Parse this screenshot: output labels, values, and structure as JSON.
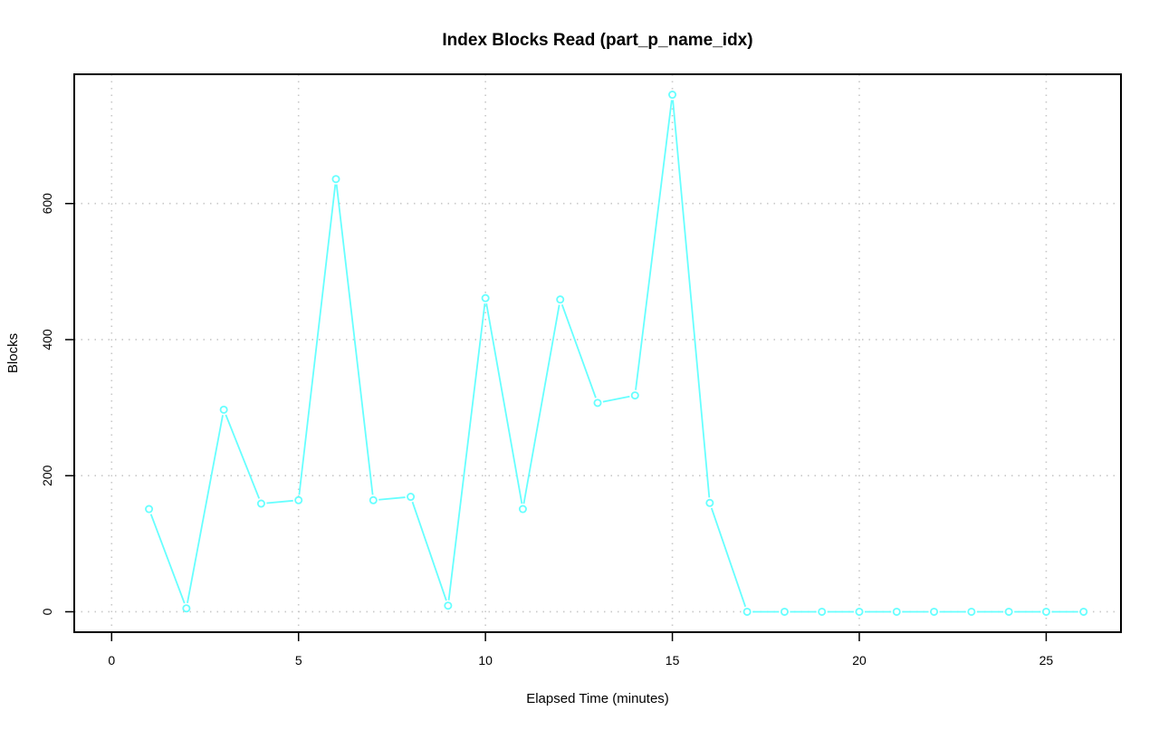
{
  "chart_data": {
    "type": "line",
    "title": "Index Blocks Read (part_p_name_idx)",
    "xlabel": "Elapsed Time (minutes)",
    "ylabel": "Blocks",
    "xlim": [
      -1,
      27
    ],
    "ylim": [
      -30,
      790
    ],
    "x_ticks": [
      0,
      5,
      10,
      15,
      20,
      25
    ],
    "x_tick_labels": [
      "0",
      "5",
      "10",
      "15",
      "20",
      "25"
    ],
    "y_ticks": [
      0,
      200,
      400,
      600
    ],
    "y_tick_labels": [
      "0",
      "200",
      "400",
      "600"
    ],
    "grid": true,
    "x": [
      1,
      2,
      3,
      4,
      5,
      6,
      7,
      8,
      9,
      10,
      11,
      12,
      13,
      14,
      15,
      16,
      17,
      18,
      19,
      20,
      21,
      22,
      23,
      24,
      25,
      26
    ],
    "series": [
      {
        "color": "#66ffff",
        "values": [
          151,
          5,
          297,
          159,
          164,
          636,
          164,
          169,
          9,
          461,
          151,
          459,
          307,
          318,
          760,
          160,
          0,
          0,
          0,
          0,
          0,
          0,
          0,
          0,
          0,
          0
        ]
      }
    ]
  }
}
